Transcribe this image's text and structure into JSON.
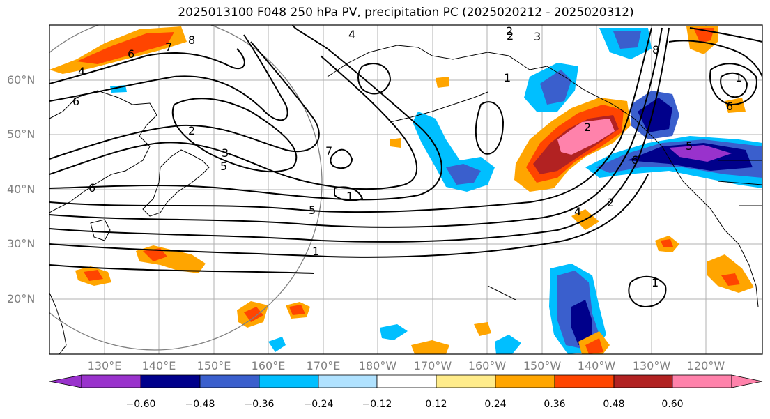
{
  "title": "2025013100 F048 250 hPa PV, precipitation PC (2025020212 - 2025020312)",
  "lat_labels": [
    "60°N",
    "50°N",
    "40°N",
    "30°N",
    "20°N"
  ],
  "lon_labels": [
    "130°E",
    "140°E",
    "150°E",
    "160°E",
    "170°E",
    "180°W",
    "170°W",
    "160°W",
    "150°W",
    "140°W",
    "130°W",
    "120°W"
  ],
  "colorbar": {
    "ticks": [
      "−0.60",
      "−0.48",
      "−0.36",
      "−0.24",
      "−0.12",
      "0.12",
      "0.24",
      "0.36",
      "0.48",
      "0.60"
    ],
    "colors": [
      "#9932cc",
      "#00008b",
      "#3a5fcd",
      "#00bfff",
      "#b0e2ff",
      "#ffffff",
      "#ffec8b",
      "#ffa500",
      "#ff4500",
      "#b22222",
      "#ff82ab"
    ]
  },
  "contour_labels": [
    "8",
    "7",
    "6",
    "4",
    "6",
    "2",
    "3",
    "5",
    "6",
    "4",
    "2",
    "3",
    "1",
    "5",
    "1",
    "7",
    "1",
    "8",
    "6",
    "2",
    "2",
    "4",
    "1",
    "1",
    "2",
    "5",
    "6"
  ]
}
